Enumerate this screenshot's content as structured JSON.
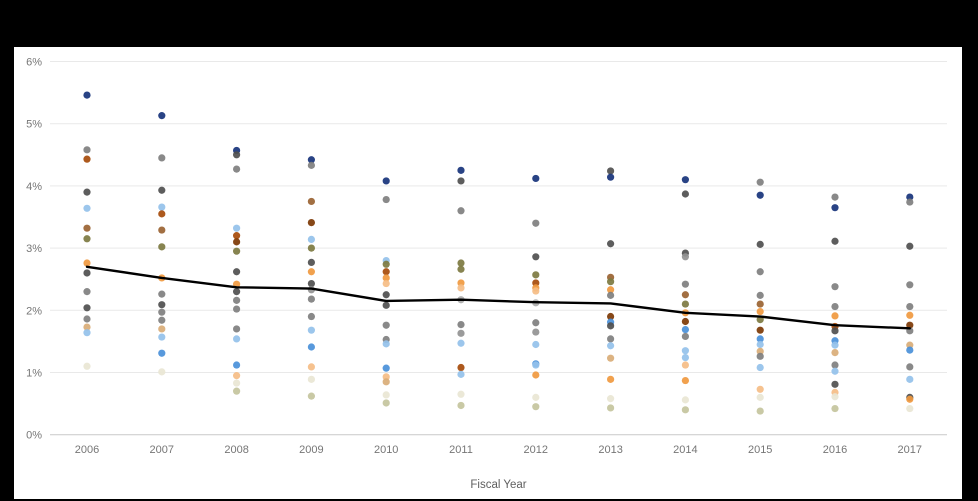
{
  "page": {
    "background": "#000000",
    "panel_background": "#ffffff"
  },
  "chart_data": {
    "type": "scatter",
    "xlabel": "Fiscal Year",
    "x_categories": [
      "2006",
      "2007",
      "2008",
      "2009",
      "2010",
      "2011",
      "2012",
      "2013",
      "2014",
      "2015",
      "2016",
      "2017"
    ],
    "ytick_labels": [
      "0%",
      "1%",
      "2%",
      "3%",
      "4%",
      "5%",
      "6%"
    ],
    "ylim": [
      0,
      6
    ],
    "grid": "horizontal",
    "axis_text_color": "#767676",
    "gridline_color": "#e9e9e9",
    "baseline_color": "#c9c9c9",
    "palette": {
      "navy": "#17337b",
      "blue": "#4a90d9",
      "lightblue": "#94c1ea",
      "gray": "#7f7f7f",
      "dimgray": "#929292",
      "darkgray": "#4f4f4f",
      "lightgray": "#ababab",
      "rust": "#a64b0a",
      "darkbrown": "#7d3804",
      "brown": "#9a6332",
      "olive": "#7d7a41",
      "lightolive": "#c4c49d",
      "orange": "#f0993f",
      "lightorange": "#f5bd85",
      "tan": "#d9ad77",
      "cream": "#e9e6d4"
    },
    "trend_line": {
      "color": "#000000",
      "values": [
        2.7,
        2.52,
        2.37,
        2.35,
        2.15,
        2.17,
        2.13,
        2.11,
        1.96,
        1.9,
        1.76,
        1.71
      ]
    },
    "dots_by_year": {
      "2006": [
        [
          5.46,
          "navy"
        ],
        [
          4.58,
          "gray"
        ],
        [
          4.43,
          "rust"
        ],
        [
          3.9,
          "darkgray"
        ],
        [
          3.64,
          "lightblue"
        ],
        [
          3.32,
          "brown"
        ],
        [
          3.15,
          "olive"
        ],
        [
          2.76,
          "orange"
        ],
        [
          2.6,
          "darkgray"
        ],
        [
          2.3,
          "gray"
        ],
        [
          2.04,
          "darkgray"
        ],
        [
          1.86,
          "gray"
        ],
        [
          1.73,
          "tan"
        ],
        [
          1.64,
          "lightblue"
        ],
        [
          1.1,
          "cream"
        ]
      ],
      "2007": [
        [
          5.13,
          "navy"
        ],
        [
          4.45,
          "gray"
        ],
        [
          3.93,
          "darkgray"
        ],
        [
          3.66,
          "lightblue"
        ],
        [
          3.55,
          "rust"
        ],
        [
          3.29,
          "brown"
        ],
        [
          3.02,
          "olive"
        ],
        [
          2.52,
          "orange"
        ],
        [
          2.26,
          "gray"
        ],
        [
          2.09,
          "darkgray"
        ],
        [
          1.97,
          "gray"
        ],
        [
          1.84,
          "gray"
        ],
        [
          1.7,
          "tan"
        ],
        [
          1.57,
          "lightblue"
        ],
        [
          1.31,
          "blue"
        ],
        [
          1.01,
          "cream"
        ]
      ],
      "2008": [
        [
          4.57,
          "navy"
        ],
        [
          4.5,
          "darkgray"
        ],
        [
          4.27,
          "gray"
        ],
        [
          3.32,
          "lightblue"
        ],
        [
          3.2,
          "rust"
        ],
        [
          3.1,
          "darkbrown"
        ],
        [
          2.95,
          "olive"
        ],
        [
          2.62,
          "darkgray"
        ],
        [
          2.42,
          "orange"
        ],
        [
          2.3,
          "darkgray"
        ],
        [
          2.16,
          "gray"
        ],
        [
          2.02,
          "gray"
        ],
        [
          1.7,
          "gray"
        ],
        [
          1.54,
          "lightblue"
        ],
        [
          1.12,
          "blue"
        ],
        [
          0.95,
          "lightorange"
        ],
        [
          0.83,
          "cream"
        ],
        [
          0.7,
          "lightolive"
        ]
      ],
      "2009": [
        [
          4.42,
          "navy"
        ],
        [
          4.33,
          "gray"
        ],
        [
          3.75,
          "brown"
        ],
        [
          3.41,
          "darkbrown"
        ],
        [
          3.14,
          "lightblue"
        ],
        [
          3.0,
          "olive"
        ],
        [
          2.77,
          "darkgray"
        ],
        [
          2.62,
          "orange"
        ],
        [
          2.43,
          "darkgray"
        ],
        [
          2.33,
          "dimgray"
        ],
        [
          2.18,
          "gray"
        ],
        [
          1.9,
          "gray"
        ],
        [
          1.68,
          "lightblue"
        ],
        [
          1.41,
          "blue"
        ],
        [
          1.09,
          "lightorange"
        ],
        [
          0.89,
          "cream"
        ],
        [
          0.62,
          "lightolive"
        ]
      ],
      "2010": [
        [
          4.08,
          "navy"
        ],
        [
          3.78,
          "gray"
        ],
        [
          2.8,
          "lightblue"
        ],
        [
          2.74,
          "olive"
        ],
        [
          2.62,
          "rust"
        ],
        [
          2.52,
          "orange"
        ],
        [
          2.43,
          "lightorange"
        ],
        [
          2.25,
          "darkgray"
        ],
        [
          2.08,
          "darkgray"
        ],
        [
          1.76,
          "gray"
        ],
        [
          1.53,
          "gray"
        ],
        [
          1.46,
          "lightblue"
        ],
        [
          1.07,
          "blue"
        ],
        [
          0.93,
          "lightorange"
        ],
        [
          0.85,
          "tan"
        ],
        [
          0.64,
          "cream"
        ],
        [
          0.51,
          "lightolive"
        ]
      ],
      "2011": [
        [
          4.25,
          "navy"
        ],
        [
          4.08,
          "darkgray"
        ],
        [
          3.6,
          "gray"
        ],
        [
          2.76,
          "olive"
        ],
        [
          2.66,
          "olive"
        ],
        [
          2.44,
          "orange"
        ],
        [
          2.36,
          "lightorange"
        ],
        [
          2.17,
          "lightgray"
        ],
        [
          1.77,
          "gray"
        ],
        [
          1.63,
          "dimgray"
        ],
        [
          1.47,
          "lightblue"
        ],
        [
          1.08,
          "rust"
        ],
        [
          0.97,
          "lightblue"
        ],
        [
          0.65,
          "cream"
        ],
        [
          0.47,
          "lightolive"
        ]
      ],
      "2012": [
        [
          4.12,
          "navy"
        ],
        [
          3.4,
          "gray"
        ],
        [
          2.86,
          "darkgray"
        ],
        [
          2.57,
          "olive"
        ],
        [
          2.44,
          "rust"
        ],
        [
          2.36,
          "orange"
        ],
        [
          2.31,
          "lightorange"
        ],
        [
          2.12,
          "lightgray"
        ],
        [
          1.8,
          "gray"
        ],
        [
          1.65,
          "dimgray"
        ],
        [
          1.45,
          "lightblue"
        ],
        [
          1.14,
          "blue"
        ],
        [
          1.12,
          "lightblue"
        ],
        [
          0.96,
          "orange"
        ],
        [
          0.6,
          "cream"
        ],
        [
          0.45,
          "lightolive"
        ]
      ],
      "2013": [
        [
          4.24,
          "darkgray"
        ],
        [
          4.14,
          "navy"
        ],
        [
          3.07,
          "darkgray"
        ],
        [
          2.53,
          "brown"
        ],
        [
          2.46,
          "olive"
        ],
        [
          2.33,
          "orange"
        ],
        [
          2.24,
          "gray"
        ],
        [
          1.9,
          "darkbrown"
        ],
        [
          1.81,
          "blue"
        ],
        [
          1.75,
          "darkgray"
        ],
        [
          1.54,
          "gray"
        ],
        [
          1.43,
          "lightblue"
        ],
        [
          1.23,
          "tan"
        ],
        [
          0.89,
          "orange"
        ],
        [
          0.58,
          "cream"
        ],
        [
          0.43,
          "lightolive"
        ]
      ],
      "2014": [
        [
          4.1,
          "navy"
        ],
        [
          3.87,
          "darkgray"
        ],
        [
          2.92,
          "darkgray"
        ],
        [
          2.86,
          "dimgray"
        ],
        [
          2.42,
          "gray"
        ],
        [
          2.25,
          "brown"
        ],
        [
          2.1,
          "olive"
        ],
        [
          1.96,
          "orange"
        ],
        [
          1.82,
          "darkbrown"
        ],
        [
          1.69,
          "blue"
        ],
        [
          1.58,
          "gray"
        ],
        [
          1.35,
          "lightblue"
        ],
        [
          1.24,
          "lightblue"
        ],
        [
          1.12,
          "lightorange"
        ],
        [
          0.87,
          "orange"
        ],
        [
          0.56,
          "cream"
        ],
        [
          0.4,
          "lightolive"
        ]
      ],
      "2015": [
        [
          4.06,
          "gray"
        ],
        [
          3.85,
          "navy"
        ],
        [
          3.06,
          "darkgray"
        ],
        [
          2.62,
          "gray"
        ],
        [
          2.24,
          "gray"
        ],
        [
          2.1,
          "brown"
        ],
        [
          1.98,
          "orange"
        ],
        [
          1.85,
          "olive"
        ],
        [
          1.68,
          "darkbrown"
        ],
        [
          1.54,
          "blue"
        ],
        [
          1.45,
          "lightblue"
        ],
        [
          1.34,
          "tan"
        ],
        [
          1.26,
          "gray"
        ],
        [
          1.08,
          "lightblue"
        ],
        [
          0.73,
          "lightorange"
        ],
        [
          0.6,
          "cream"
        ],
        [
          0.38,
          "lightolive"
        ]
      ],
      "2016": [
        [
          3.82,
          "gray"
        ],
        [
          3.65,
          "navy"
        ],
        [
          3.11,
          "darkgray"
        ],
        [
          2.38,
          "gray"
        ],
        [
          2.06,
          "gray"
        ],
        [
          1.91,
          "orange"
        ],
        [
          1.74,
          "rust"
        ],
        [
          1.67,
          "darkgray"
        ],
        [
          1.51,
          "blue"
        ],
        [
          1.44,
          "lightblue"
        ],
        [
          1.32,
          "tan"
        ],
        [
          1.12,
          "gray"
        ],
        [
          1.02,
          "lightblue"
        ],
        [
          0.81,
          "darkgray"
        ],
        [
          0.68,
          "lightorange"
        ],
        [
          0.61,
          "cream"
        ],
        [
          0.42,
          "lightolive"
        ]
      ],
      "2017": [
        [
          3.82,
          "navy"
        ],
        [
          3.74,
          "gray"
        ],
        [
          3.03,
          "darkgray"
        ],
        [
          2.41,
          "gray"
        ],
        [
          2.06,
          "gray"
        ],
        [
          1.92,
          "orange"
        ],
        [
          1.76,
          "darkbrown"
        ],
        [
          1.67,
          "gray"
        ],
        [
          1.44,
          "tan"
        ],
        [
          1.36,
          "blue"
        ],
        [
          1.09,
          "gray"
        ],
        [
          0.89,
          "lightblue"
        ],
        [
          0.6,
          "darkgray"
        ],
        [
          0.57,
          "orange"
        ],
        [
          0.42,
          "cream"
        ]
      ]
    }
  }
}
